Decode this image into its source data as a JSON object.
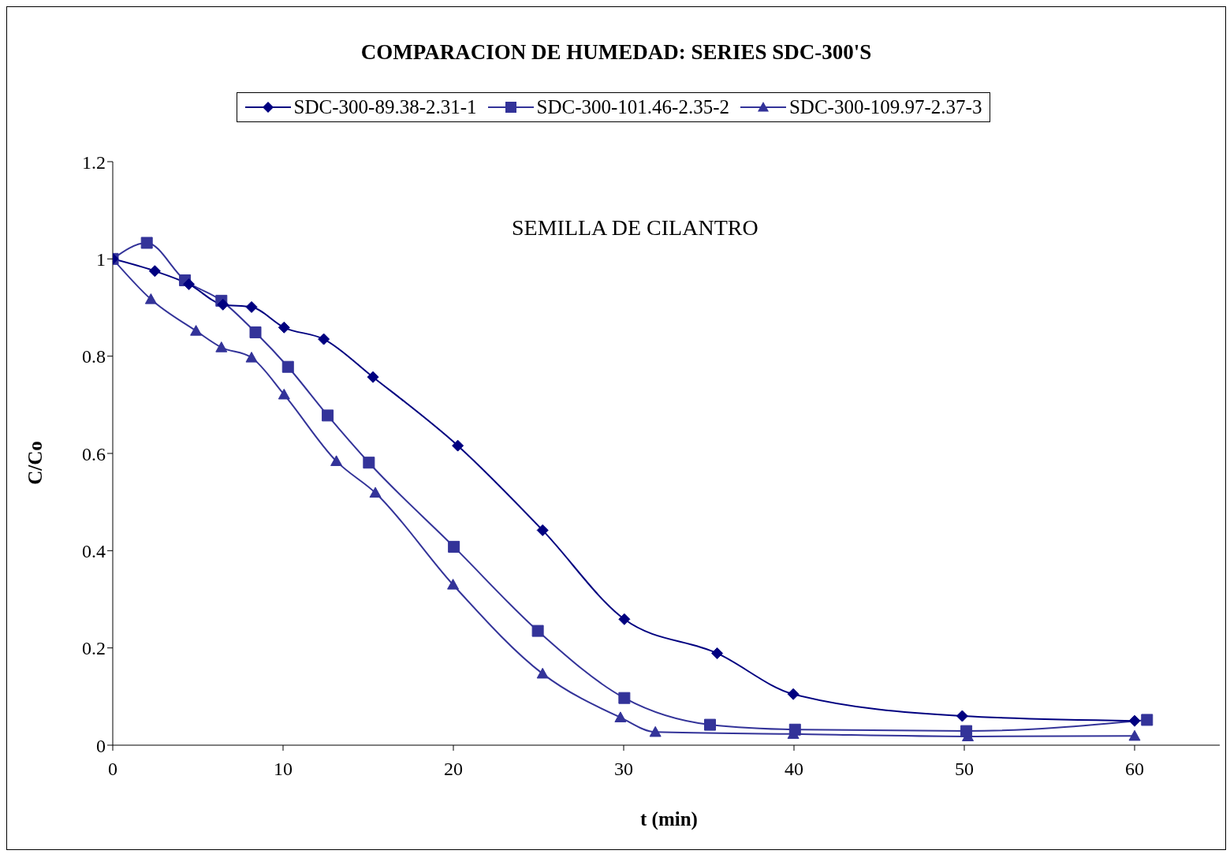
{
  "chart_data": {
    "type": "line",
    "title": "COMPARACION DE HUMEDAD: SERIES SDC-300'S",
    "xlabel": "t (min)",
    "ylabel": "C/Co",
    "annotations": [
      "SEMILLA DE CILANTRO"
    ],
    "xlim": [
      0,
      65
    ],
    "xticks": [
      0,
      10,
      20,
      30,
      40,
      50,
      60
    ],
    "ylim": [
      0,
      1.2
    ],
    "yticks": [
      0,
      0.2,
      0.4,
      0.6,
      0.8,
      1,
      1.2
    ],
    "grid": false,
    "legend": "top",
    "line_style": "solid",
    "series": [
      {
        "name": "SDC-300-89.38-2.31-1",
        "color": "#000080",
        "marker": "diamond",
        "x": [
          0,
          2.47,
          4.47,
          6.47,
          8.15,
          10.06,
          12.39,
          15.28,
          20.26,
          25.24,
          30.04,
          35.49,
          39.96,
          49.88,
          60
        ],
        "values": [
          1.0,
          0.975,
          0.948,
          0.906,
          0.901,
          0.859,
          0.835,
          0.757,
          0.616,
          0.442,
          0.259,
          0.189,
          0.105,
          0.06,
          0.05
        ]
      },
      {
        "name": "SDC-300-101.46-2.35-2",
        "color": "#333399",
        "marker": "square",
        "x": [
          0,
          2.0,
          4.24,
          6.38,
          8.38,
          10.29,
          12.62,
          15.04,
          20.03,
          24.96,
          30.04,
          35.07,
          40.06,
          50.12,
          60.73
        ],
        "values": [
          1.0,
          1.033,
          0.956,
          0.914,
          0.849,
          0.778,
          0.678,
          0.581,
          0.408,
          0.235,
          0.097,
          0.042,
          0.032,
          0.029,
          0.052
        ]
      },
      {
        "name": "SDC-300-109.97-2.37-3",
        "color": "#333399",
        "marker": "triangle",
        "x": [
          0,
          2.24,
          4.89,
          6.38,
          8.15,
          10.06,
          13.13,
          15.42,
          19.98,
          25.24,
          29.81,
          31.86,
          39.96,
          50.21,
          60
        ],
        "values": [
          1.0,
          0.917,
          0.852,
          0.818,
          0.797,
          0.721,
          0.584,
          0.519,
          0.33,
          0.147,
          0.057,
          0.027,
          0.023,
          0.018,
          0.019
        ]
      }
    ]
  }
}
